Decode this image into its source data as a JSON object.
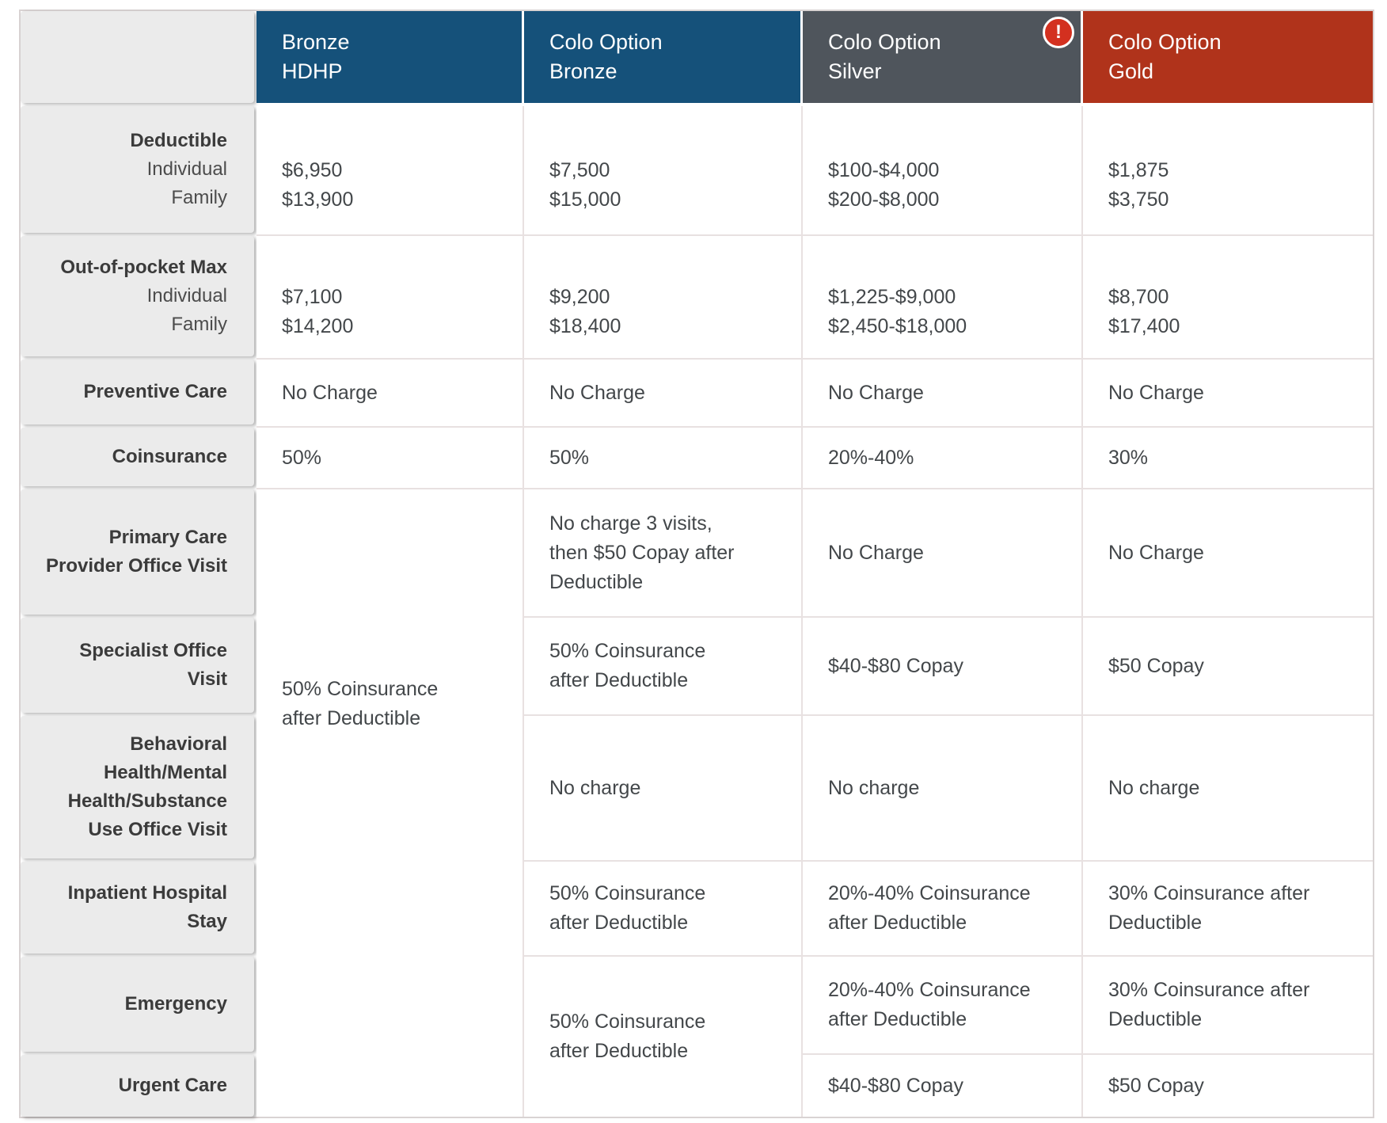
{
  "header": {
    "plans": [
      {
        "name": "Bronze\nHDHP"
      },
      {
        "name": "Colo Option\nBronze"
      },
      {
        "name": "Colo Option\nSilver",
        "alert": "!"
      },
      {
        "name": "Colo Option\nGold"
      }
    ]
  },
  "rows": {
    "deductible": {
      "label": "Deductible",
      "sublabels": [
        "Individual",
        "Family"
      ],
      "bronze_hdhp": "$6,950\n$13,900",
      "colo_bronze": "$7,500\n$15,000",
      "colo_silver": "$100-$4,000\n$200-$8,000",
      "colo_gold": "$1,875\n$3,750"
    },
    "oop_max": {
      "label": "Out-of-pocket Max",
      "sublabels": [
        "Individual",
        "Family"
      ],
      "bronze_hdhp": "$7,100\n$14,200",
      "colo_bronze": "$9,200\n$18,400",
      "colo_silver": "$1,225-$9,000\n$2,450-$18,000",
      "colo_gold": "$8,700\n$17,400"
    },
    "preventive": {
      "label": "Preventive Care",
      "bronze_hdhp": "No Charge",
      "colo_bronze": "No Charge",
      "colo_silver": "No Charge",
      "colo_gold": "No Charge"
    },
    "coinsurance": {
      "label": "Coinsurance",
      "bronze_hdhp": "50%",
      "colo_bronze": "50%",
      "colo_silver": "20%-40%",
      "colo_gold": "30%"
    },
    "primary_care": {
      "label": "Primary Care\nProvider Office Visit",
      "colo_bronze": "No charge 3 visits,\nthen $50 Copay after\nDeductible",
      "colo_silver": "No Charge",
      "colo_gold": "No Charge"
    },
    "specialist": {
      "label": "Specialist Office\nVisit",
      "colo_bronze": "50% Coinsurance\nafter Deductible",
      "colo_silver": "$40-$80 Copay",
      "colo_gold": "$50 Copay"
    },
    "behavioral": {
      "label": "Behavioral\nHealth/Mental\nHealth/Substance\nUse Office Visit",
      "colo_bronze": "No charge",
      "colo_silver": "No charge",
      "colo_gold": "No charge"
    },
    "inpatient": {
      "label": "Inpatient Hospital\nStay",
      "colo_bronze": "50% Coinsurance\nafter Deductible",
      "colo_silver": "20%-40% Coinsurance\nafter Deductible",
      "colo_gold": "30% Coinsurance after\nDeductible"
    },
    "emergency": {
      "label": "Emergency",
      "colo_silver": "20%-40% Coinsurance\nafter Deductible",
      "colo_gold": "30% Coinsurance after\nDeductible"
    },
    "urgent_care": {
      "label": "Urgent Care",
      "colo_silver": "$40-$80 Copay",
      "colo_gold": "$50 Copay"
    },
    "merged": {
      "bronze_hdhp_all_services": "50% Coinsurance\nafter Deductible",
      "colo_bronze_emergency_urgent": "50% Coinsurance\nafter Deductible"
    }
  },
  "colors": {
    "header_blue": "#15517a",
    "header_slate": "#4f555c",
    "header_rust": "#b0331b",
    "alert_red": "#d3301f",
    "row_label_bg": "#ebebeb",
    "gridline": "#e8e1e1",
    "cell_text": "#43474a",
    "label_text": "#3b3b3b"
  }
}
